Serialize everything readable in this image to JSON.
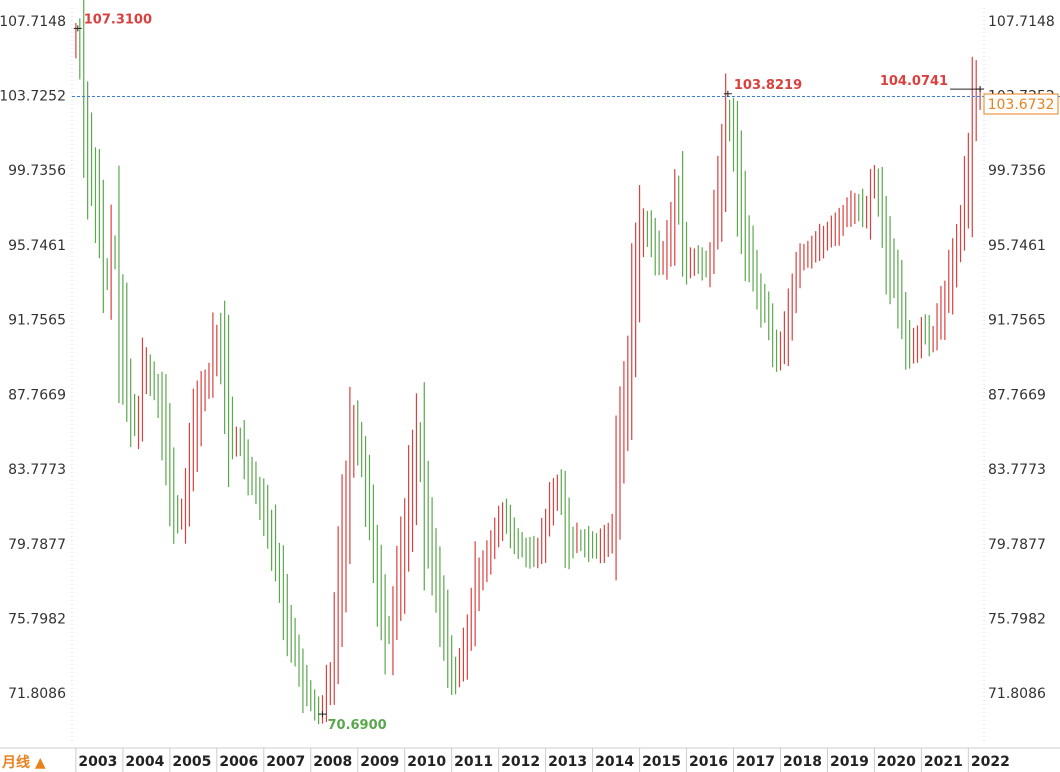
{
  "chart_data": {
    "type": "ohlc",
    "period_label": "月线 ▲",
    "y_ticks": [
      "107.7148",
      "103.7252",
      "99.7356",
      "95.7461",
      "91.7565",
      "87.7669",
      "83.7773",
      "79.7877",
      "75.7982",
      "71.8086"
    ],
    "ylim": [
      69.2,
      108.4
    ],
    "x_ticks": [
      "2003",
      "2004",
      "2005",
      "2006",
      "2007",
      "2008",
      "2009",
      "2010",
      "2011",
      "2012",
      "2013",
      "2014",
      "2015",
      "2016",
      "2017",
      "2018",
      "2019",
      "2020",
      "2021",
      "2022"
    ],
    "x_start_year": 2002.917,
    "x_end_year": 2022.333,
    "last_price": "103.6732",
    "reference_level": 103.6732,
    "annotations": [
      {
        "label": "107.3100",
        "date": 2003.04,
        "value": 107.31,
        "kind": "high",
        "color": "#d9413f"
      },
      {
        "label": "70.6900",
        "date": 2008.25,
        "value": 70.69,
        "kind": "low",
        "color": "#5aa84d"
      },
      {
        "label": "103.8219",
        "date": 2016.88,
        "value": 103.82,
        "kind": "high",
        "color": "#d9413f"
      },
      {
        "label": "104.0741",
        "date": 2022.25,
        "value": 104.07,
        "kind": "high",
        "color": "#d9413f"
      }
    ],
    "anchors": [
      [
        2003.0,
        106.5
      ],
      [
        2003.08,
        107.3
      ],
      [
        2003.25,
        101.5
      ],
      [
        2003.5,
        97.5
      ],
      [
        2003.67,
        93.0
      ],
      [
        2003.83,
        96.5
      ],
      [
        2004.0,
        91.0
      ],
      [
        2004.17,
        87.0
      ],
      [
        2004.33,
        86.0
      ],
      [
        2004.5,
        89.5
      ],
      [
        2004.83,
        87.5
      ],
      [
        2005.08,
        82.0
      ],
      [
        2005.25,
        80.8
      ],
      [
        2005.42,
        83.5
      ],
      [
        2005.67,
        87.5
      ],
      [
        2005.92,
        89.0
      ],
      [
        2006.0,
        91.0
      ],
      [
        2006.17,
        89.5
      ],
      [
        2006.33,
        85.0
      ],
      [
        2006.5,
        85.5
      ],
      [
        2006.75,
        83.5
      ],
      [
        2007.0,
        82.0
      ],
      [
        2007.25,
        79.5
      ],
      [
        2007.5,
        76.0
      ],
      [
        2007.67,
        74.5
      ],
      [
        2007.83,
        72.5
      ],
      [
        2008.0,
        71.5
      ],
      [
        2008.25,
        70.7
      ],
      [
        2008.5,
        73.0
      ],
      [
        2008.67,
        79.0
      ],
      [
        2008.92,
        86.5
      ],
      [
        2009.17,
        84.0
      ],
      [
        2009.33,
        80.5
      ],
      [
        2009.5,
        77.0
      ],
      [
        2009.67,
        74.5
      ],
      [
        2009.83,
        77.0
      ],
      [
        2010.0,
        79.5
      ],
      [
        2010.25,
        84.5
      ],
      [
        2010.33,
        86.0
      ],
      [
        2010.5,
        80.5
      ],
      [
        2010.75,
        77.0
      ],
      [
        2010.92,
        74.5
      ],
      [
        2011.08,
        72.5
      ],
      [
        2011.25,
        73.5
      ],
      [
        2011.42,
        75.5
      ],
      [
        2011.58,
        78.0
      ],
      [
        2011.83,
        79.5
      ],
      [
        2012.17,
        81.5
      ],
      [
        2012.33,
        80.0
      ],
      [
        2012.58,
        79.5
      ],
      [
        2012.83,
        79.0
      ],
      [
        2013.17,
        82.0
      ],
      [
        2013.33,
        83.0
      ],
      [
        2013.5,
        80.0
      ],
      [
        2013.83,
        80.0
      ],
      [
        2014.17,
        79.5
      ],
      [
        2014.33,
        80.0
      ],
      [
        2014.5,
        81.0
      ],
      [
        2014.58,
        84.5
      ],
      [
        2014.75,
        88.0
      ],
      [
        2014.92,
        93.0
      ],
      [
        2015.08,
        97.0
      ],
      [
        2015.25,
        96.5
      ],
      [
        2015.5,
        94.5
      ],
      [
        2015.67,
        96.5
      ],
      [
        2015.83,
        99.0
      ],
      [
        2016.0,
        94.5
      ],
      [
        2016.17,
        95.0
      ],
      [
        2016.5,
        94.5
      ],
      [
        2016.75,
        99.0
      ],
      [
        2016.83,
        102.0
      ],
      [
        2016.92,
        103.0
      ],
      [
        2017.08,
        100.0
      ],
      [
        2017.25,
        97.0
      ],
      [
        2017.42,
        94.5
      ],
      [
        2017.58,
        93.0
      ],
      [
        2017.83,
        91.5
      ],
      [
        2017.92,
        89.5
      ],
      [
        2018.17,
        91.5
      ],
      [
        2018.42,
        95.0
      ],
      [
        2018.67,
        95.5
      ],
      [
        2018.92,
        96.0
      ],
      [
        2019.17,
        96.5
      ],
      [
        2019.42,
        97.5
      ],
      [
        2019.67,
        98.0
      ],
      [
        2019.83,
        97.0
      ],
      [
        2020.0,
        99.5
      ],
      [
        2020.17,
        98.0
      ],
      [
        2020.33,
        95.0
      ],
      [
        2020.58,
        92.5
      ],
      [
        2020.75,
        90.0
      ],
      [
        2020.92,
        90.5
      ],
      [
        2021.08,
        91.5
      ],
      [
        2021.25,
        90.5
      ],
      [
        2021.42,
        92.0
      ],
      [
        2021.58,
        93.5
      ],
      [
        2021.75,
        95.5
      ],
      [
        2021.92,
        97.0
      ],
      [
        2022.08,
        101.0
      ],
      [
        2022.17,
        103.5
      ],
      [
        2022.25,
        103.7
      ]
    ]
  }
}
